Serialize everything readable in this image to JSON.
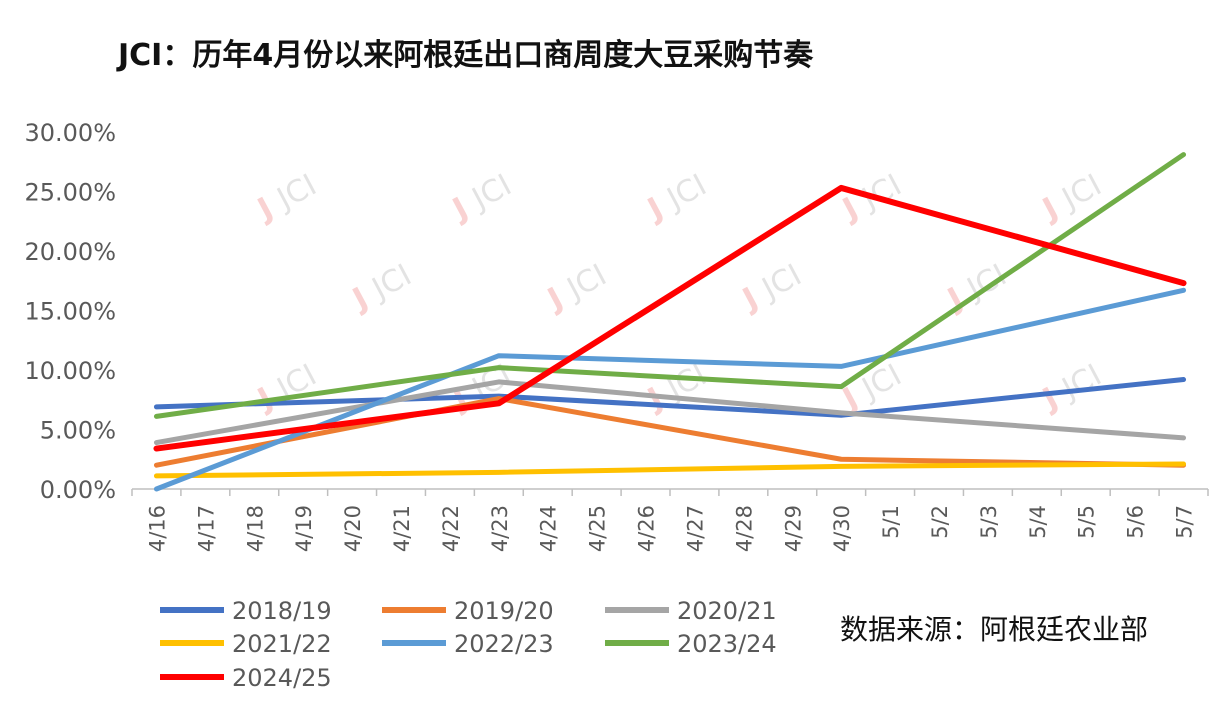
{
  "chart_data": {
    "type": "line",
    "title": "JCI：历年4月份以来阿根廷出口商周度大豆采购节奏",
    "source": "数据来源：阿根廷农业部",
    "watermark": "JCI",
    "x": [
      "4/16",
      "4/17",
      "4/18",
      "4/19",
      "4/20",
      "4/21",
      "4/22",
      "4/23",
      "4/24",
      "4/25",
      "4/26",
      "4/27",
      "4/28",
      "4/29",
      "4/30",
      "5/1",
      "5/2",
      "5/3",
      "5/4",
      "5/5",
      "5/6",
      "5/7"
    ],
    "ylim": [
      0,
      30
    ],
    "yticks": [
      0,
      5,
      10,
      15,
      20,
      25,
      30
    ],
    "ytick_labels": [
      "0.00%",
      "5.00%",
      "10.00%",
      "15.00%",
      "20.00%",
      "25.00%",
      "30.00%"
    ],
    "legend_position": "bottom",
    "series": [
      {
        "name": "2018/19",
        "color": "#4472c4",
        "points": [
          [
            "4/16",
            6.9
          ],
          [
            "4/23",
            7.8
          ],
          [
            "4/30",
            6.2
          ],
          [
            "5/7",
            9.2
          ]
        ]
      },
      {
        "name": "2019/20",
        "color": "#ed7d31",
        "points": [
          [
            "4/16",
            2.0
          ],
          [
            "4/23",
            7.6
          ],
          [
            "4/30",
            2.5
          ],
          [
            "5/7",
            2.0
          ]
        ]
      },
      {
        "name": "2020/21",
        "color": "#a5a5a5",
        "points": [
          [
            "4/16",
            3.9
          ],
          [
            "4/23",
            9.0
          ],
          [
            "4/30",
            6.4
          ],
          [
            "5/7",
            4.3
          ]
        ]
      },
      {
        "name": "2021/22",
        "color": "#ffc000",
        "points": [
          [
            "4/16",
            1.1
          ],
          [
            "4/23",
            1.4
          ],
          [
            "4/30",
            1.9
          ],
          [
            "5/7",
            2.1
          ]
        ]
      },
      {
        "name": "2022/23",
        "color": "#5b9bd5",
        "points": [
          [
            "4/16",
            0.0
          ],
          [
            "4/23",
            11.2
          ],
          [
            "4/30",
            10.3
          ],
          [
            "5/7",
            16.7
          ]
        ]
      },
      {
        "name": "2023/24",
        "color": "#70ad47",
        "points": [
          [
            "4/16",
            6.1
          ],
          [
            "4/23",
            10.2
          ],
          [
            "4/30",
            8.6
          ],
          [
            "5/7",
            28.1
          ]
        ]
      },
      {
        "name": "2024/25",
        "color": "#ff0000",
        "points": [
          [
            "4/16",
            3.4
          ],
          [
            "4/23",
            7.2
          ],
          [
            "4/30",
            25.3
          ],
          [
            "5/7",
            17.3
          ]
        ]
      }
    ]
  }
}
